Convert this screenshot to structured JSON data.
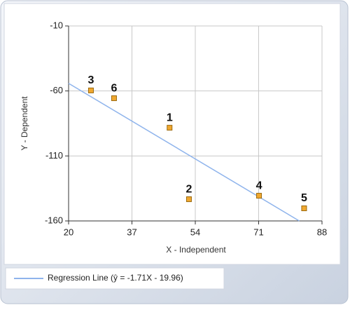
{
  "chart_data": {
    "type": "scatter",
    "x_label": "X - Independent",
    "y_label": "Y - Dependent",
    "xlim": [
      20,
      88
    ],
    "ylim": [
      -160,
      -10
    ],
    "xticks": [
      20,
      37,
      54,
      71,
      88
    ],
    "yticks": [
      -10,
      -60,
      -110,
      -160
    ],
    "grid": true,
    "series": [
      {
        "color": "#f0a830",
        "x": [
          47.1,
          52.3,
          26.0,
          71.1,
          83.2,
          32.2
        ],
        "values": [
          -88.3,
          -143.3,
          -59.6,
          -140.6,
          -150.3,
          -65.6
        ],
        "point_labels": [
          "1",
          "2",
          "3",
          "4",
          "5",
          "6"
        ]
      }
    ],
    "regression": {
      "name": "Regression Line (ŷ = -1.71X - 19.96)",
      "color": "#8fb4ec",
      "x": [
        20,
        81.9
      ],
      "values": [
        -54.16,
        -160
      ]
    },
    "legend": "bottom-left"
  }
}
